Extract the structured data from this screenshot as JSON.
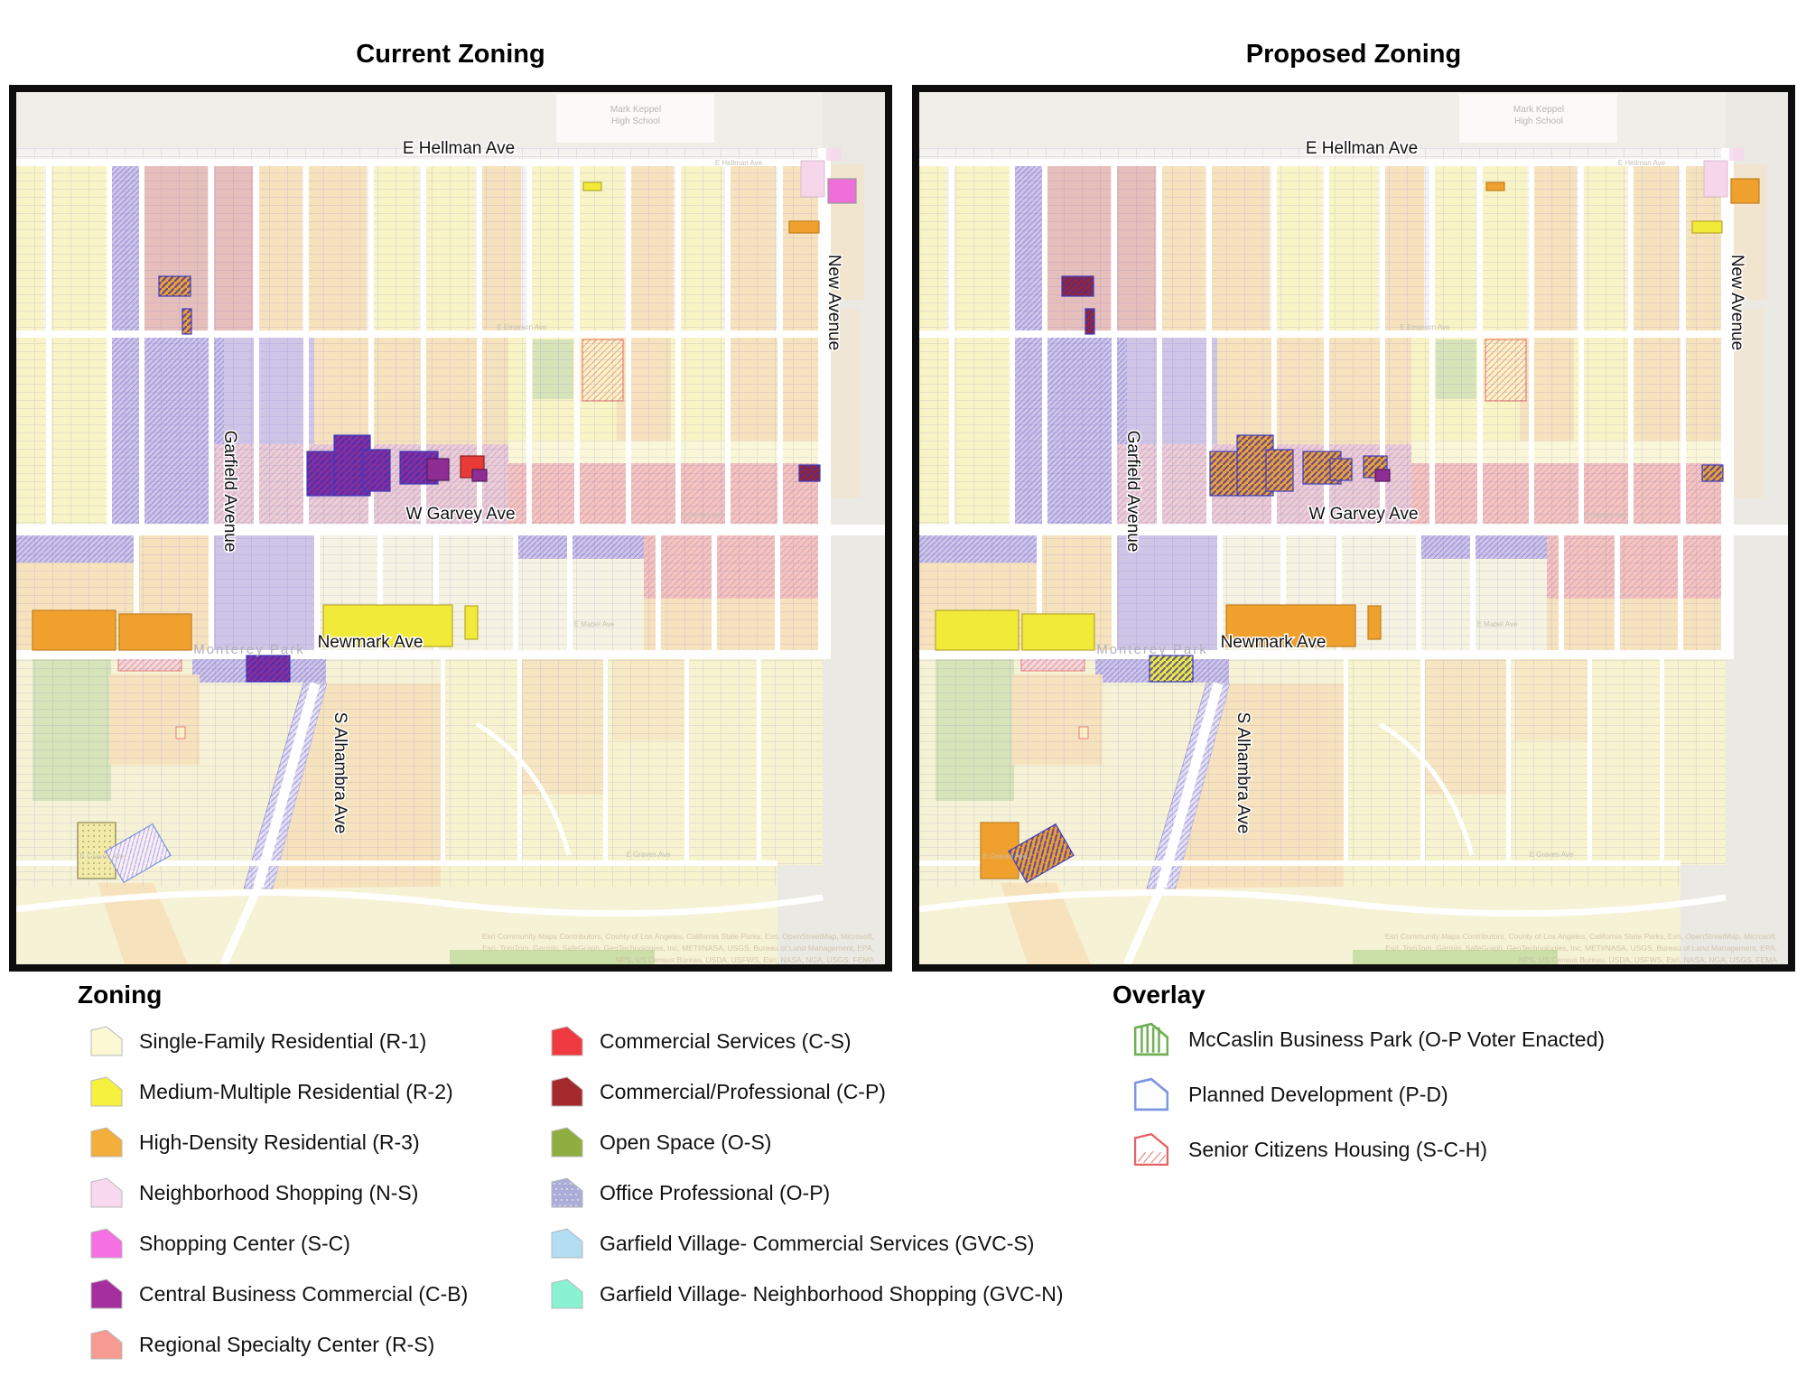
{
  "titles": {
    "current": "Current Zoning",
    "proposed": "Proposed Zoning"
  },
  "maps": {
    "street_labels": [
      "E Hellman Ave",
      "New Avenue",
      "Garfield Avenue",
      "W Garvey Ave",
      "Newmark Ave",
      "S Alhambra Ave"
    ],
    "basemap_labels": {
      "school_line1": "Mark Keppel",
      "school_line2": "High School",
      "city": "Monterey Park",
      "e_hellman": "E Hellman Ave",
      "e_emerson": "E Emerson Ave",
      "e_garvey": "E Garvey Ave",
      "e_mabel": "E Mabel Ave",
      "e_graves": "E Graves Ave"
    },
    "attribution_lines": [
      "Esri Community Maps Contributors, County of Los Angeles, California State Parks, Esri, OpenStreetMap, Microsoft,",
      "Esri, TomTom, Garmin, SafeGraph, GeoTechnologies, Inc, METI/NASA, USGS, Bureau of Land Management, EPA,",
      "NPS, US Census Bureau, USDA, USFWS, Esri, NASA, NGA, USGS, FEMA"
    ]
  },
  "map_palette": {
    "r1_faded": "#F8F4C6",
    "r3_faded": "#F7E2BE",
    "rs_faded": "#E6BEBC",
    "op_faded": "#CFC5E7",
    "pink_band": "#F2C6C2",
    "pinklav": "#E8CFDC",
    "cream": "#F7F3E2",
    "os_faded": "#D7E4B9",
    "os_band": "#CBDFA9",
    "r2_bright": "#F2EA38",
    "r3_bright": "#F0A12D",
    "cb_purple": "#8E2D94",
    "cs_red": "#E73B38",
    "cp_darkred": "#9E2328",
    "sc_pink": "#EE6FD9",
    "ns_light": "#F6D6EB",
    "gray_top": "#F0EEE9",
    "gray_out": "#EBE9E4"
  },
  "legend": {
    "zoning_heading": "Zoning",
    "overlay_heading": "Overlay",
    "zoning_col1": [
      {
        "label": "Single-Family Residential (R-1)",
        "color": "#FBF8D3",
        "style": "solid"
      },
      {
        "label": "Medium-Multiple Residential (R-2)",
        "color": "#F6F13E",
        "style": "solid"
      },
      {
        "label": "High-Density Residential (R-3)",
        "color": "#F2AF3B",
        "style": "solid"
      },
      {
        "label": "Neighborhood Shopping (N-S)",
        "color": "#F9D9EF",
        "style": "solid"
      },
      {
        "label": "Shopping Center (S-C)",
        "color": "#F570E2",
        "style": "solid"
      },
      {
        "label": "Central Business Commercial (C-B)",
        "color": "#A3309E",
        "style": "solid"
      },
      {
        "label": "Regional Specialty Center (R-S)",
        "color": "#F59B92",
        "style": "solid"
      }
    ],
    "zoning_col2": [
      {
        "label": "Commercial Services (C-S)",
        "color": "#EE3A40",
        "style": "solid"
      },
      {
        "label": "Commercial/Professional (C-P)",
        "color": "#A3292C",
        "style": "solid"
      },
      {
        "label": "Open Space (O-S)",
        "color": "#8FAE3F",
        "style": "solid"
      },
      {
        "label": "Office Professional (O-P)",
        "color": "#ACACD8",
        "style": "dots"
      },
      {
        "label": "Garfield Village- Commercial Services (GVC-S)",
        "color": "#B2DDF3",
        "style": "solid"
      },
      {
        "label": "Garfield Village- Neighborhood Shopping (GVC-N)",
        "color": "#88F2D1",
        "style": "solid"
      }
    ],
    "overlay": [
      {
        "label": "McCaslin Business Park (O-P Voter Enacted)",
        "color": "#6FB054",
        "style": "stripes"
      },
      {
        "label": "Planned Development (P-D)",
        "color": "#7D97E1",
        "style": "outline"
      },
      {
        "label": "Senior Citizens Housing (S-C-H)",
        "color": "#E66161",
        "style": "hatch"
      }
    ]
  }
}
